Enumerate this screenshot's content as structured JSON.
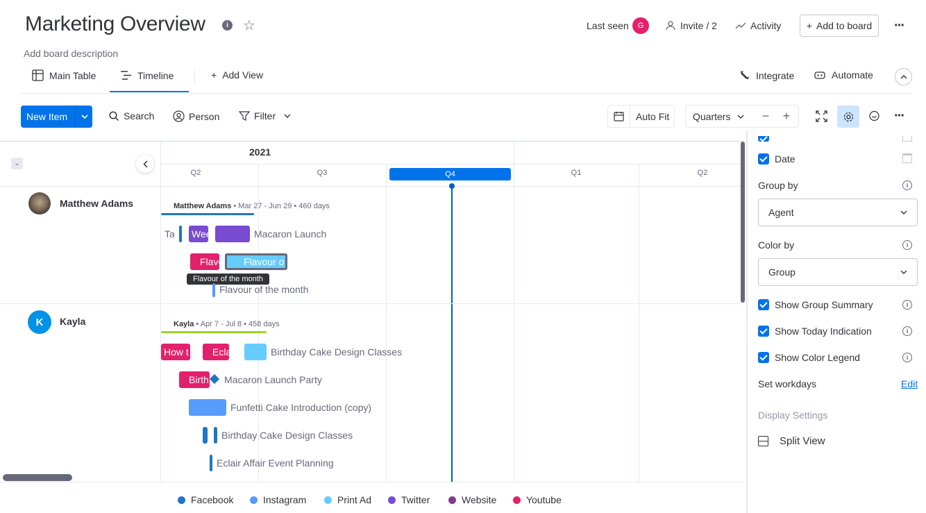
{
  "header": {
    "title": "Marketing Overview",
    "description": "Add board description",
    "last_seen": "Last seen",
    "last_seen_avatar": "G",
    "invite": "Invite / 2",
    "activity": "Activity",
    "add_to_board": "Add to board"
  },
  "tabs": [
    {
      "label": "Main Table"
    },
    {
      "label": "Timeline"
    },
    {
      "label": "Add View"
    }
  ],
  "right_tabs": {
    "integrate": "Integrate",
    "automate": "Automate"
  },
  "toolbar": {
    "new_item": "New Item",
    "search": "Search",
    "person": "Person",
    "filter": "Filter",
    "auto_fit": "Auto Fit",
    "zoom": "Quarters"
  },
  "timeline": {
    "year": "2021",
    "quarters": [
      "Q2",
      "Q3",
      "Q4",
      "Q1",
      "Q2"
    ],
    "active_quarter": "Q4",
    "groups": [
      {
        "name": "Matthew Adams",
        "summary_name": "Matthew Adams",
        "summary_rest": " • Mar 27 - Jun 29 • 460 days",
        "items": {
          "ta": "Ta",
          "wee": "Wee",
          "macaron": "Macaron Launch",
          "flav1": "Flavo",
          "flav2": "Flavour o",
          "tooltip": "Flavour of the month",
          "flav3": "Flavour of the month"
        }
      },
      {
        "name": "Kayla",
        "avatar": "K",
        "summary_name": "Kayla",
        "summary_rest": " • Apr 7 - Jul 8 • 458 days",
        "items": {
          "how": "How t",
          "ecla": "Ecla",
          "bcdc1": "Birthday Cake Design Classes",
          "birth": "Birth",
          "mlp": "Macaron Launch Party",
          "funfetti": "Funfetti Cake Introduction (copy)",
          "bcdc2": "Birthday Cake Design Classes",
          "eclair": "Eclair Affair Event Planning"
        }
      }
    ]
  },
  "legend": [
    {
      "label": "Facebook",
      "color": "#1f76c2"
    },
    {
      "label": "Instagram",
      "color": "#579bfc"
    },
    {
      "label": "Print Ad",
      "color": "#66ccff"
    },
    {
      "label": "Twitter",
      "color": "#784bd1"
    },
    {
      "label": "Website",
      "color": "#7e3b8a"
    },
    {
      "label": "Youtube",
      "color": "#e2216c"
    }
  ],
  "settings": {
    "date": "Date",
    "group_by": "Group by",
    "group_by_value": "Agent",
    "color_by": "Color by",
    "color_by_value": "Group",
    "show_group_summary": "Show Group Summary",
    "show_today": "Show Today Indication",
    "show_color_legend": "Show Color Legend",
    "set_workdays": "Set workdays",
    "edit": "Edit",
    "display_settings": "Display Settings",
    "split_view": "Split View"
  },
  "colors": {
    "primary": "#0073ea",
    "pink": "#e2216c",
    "purple": "#784bd1",
    "light_blue": "#66ccff",
    "blue": "#579bfc",
    "dark_blue": "#1f76c2",
    "green": "#9cd326"
  }
}
